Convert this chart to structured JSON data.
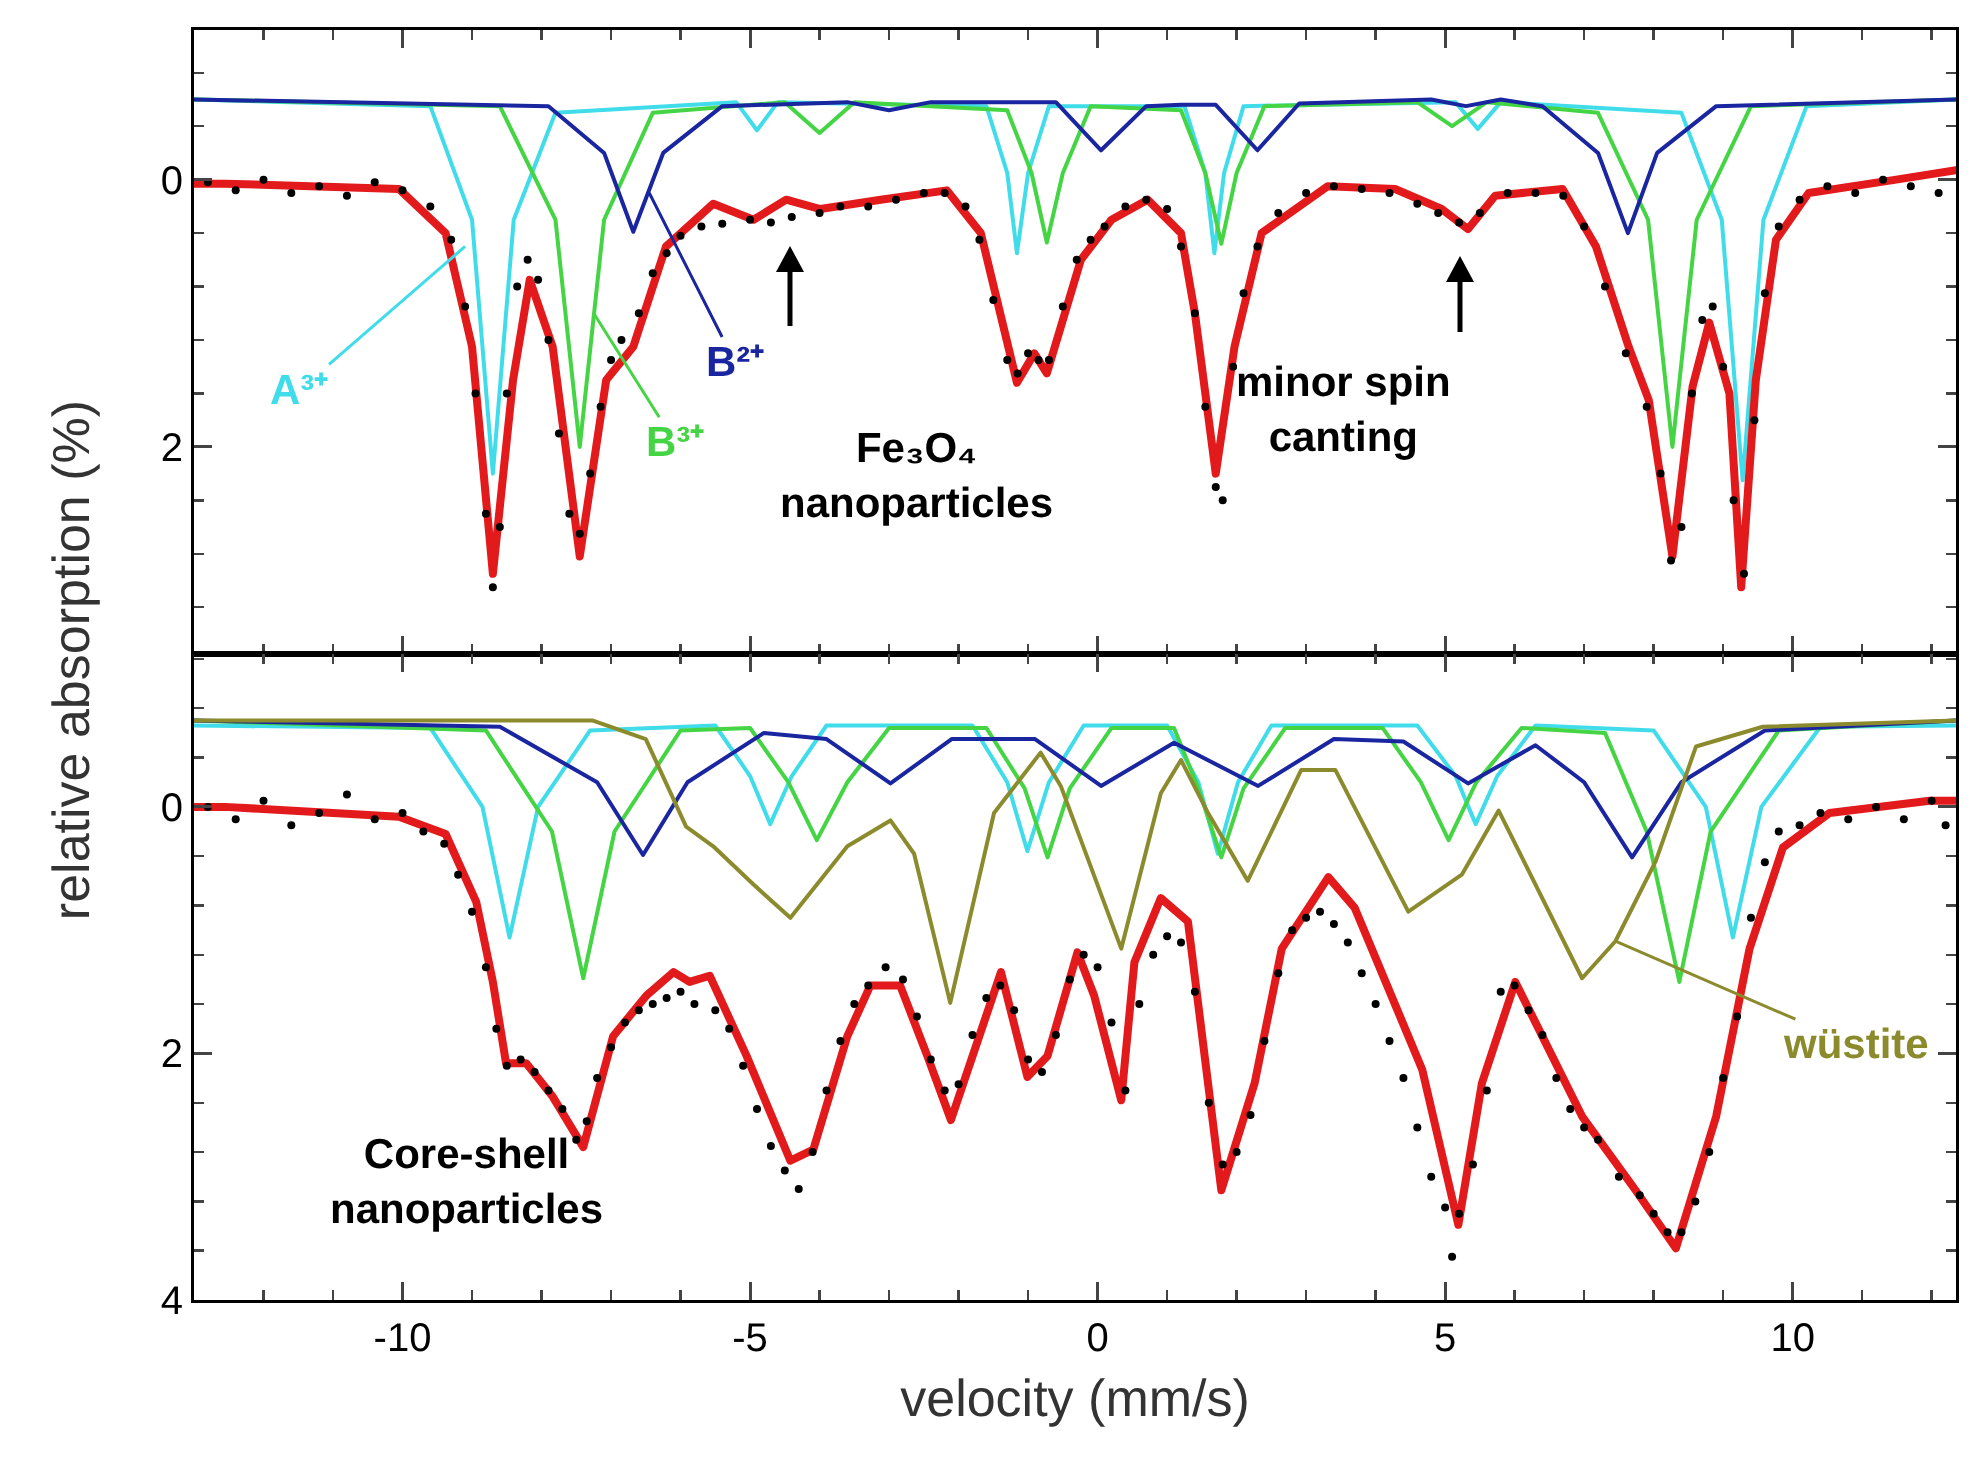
{
  "chart_data": [
    {
      "type": "line",
      "ylabel": "relative absorption (%)",
      "xlim": [
        -13.0,
        12.35
      ],
      "xticks": [
        -10,
        -5,
        0,
        5,
        10
      ],
      "ylim": [
        3.55,
        -1.12
      ],
      "yticks": [
        0,
        2
      ],
      "tick_labels": "y",
      "line_style": "solid",
      "annotations": [
        {
          "text": "A³⁺",
          "x": -9.1,
          "y": 0.5
        },
        {
          "text": "B³⁺",
          "x": -7.25,
          "y": 1.0
        },
        {
          "text": "B²⁺",
          "x": -6.45,
          "y": 0.1
        },
        "Fe₃O₄\nnanoparticles",
        "minor spin\ncanting"
      ],
      "series": [
        {
          "type": "line",
          "color": "#40dcea",
          "x": [
            -13.0,
            -9.6,
            -9.0,
            -8.7,
            -8.4,
            -7.8,
            -5.2,
            -4.9,
            -4.6,
            -1.6,
            -1.3,
            -1.16,
            -1.0,
            -0.7,
            1.25,
            1.55,
            1.68,
            1.82,
            2.1,
            5.15,
            5.47,
            5.8,
            8.4,
            8.98,
            9.28,
            9.58,
            10.2,
            12.35
          ],
          "values": [
            -0.6,
            -0.55,
            0.3,
            2.2,
            0.3,
            -0.5,
            -0.58,
            -0.37,
            -0.58,
            -0.55,
            -0.05,
            0.55,
            -0.05,
            -0.55,
            -0.55,
            -0.05,
            0.55,
            -0.05,
            -0.55,
            -0.58,
            -0.38,
            -0.58,
            -0.5,
            0.3,
            2.25,
            0.3,
            -0.55,
            -0.6
          ]
        },
        {
          "type": "line",
          "color": "#44d444",
          "x": [
            -13.0,
            -8.6,
            -7.8,
            -7.45,
            -7.1,
            -6.4,
            -4.5,
            -4.0,
            -3.5,
            -1.3,
            -0.95,
            -0.73,
            -0.5,
            -0.1,
            1.2,
            1.55,
            1.78,
            2.0,
            2.4,
            4.6,
            5.1,
            5.6,
            7.2,
            7.92,
            8.27,
            8.62,
            9.4,
            12.35
          ],
          "values": [
            -0.6,
            -0.55,
            0.3,
            2.0,
            0.3,
            -0.5,
            -0.58,
            -0.35,
            -0.58,
            -0.52,
            -0.05,
            0.47,
            -0.05,
            -0.55,
            -0.52,
            -0.05,
            0.48,
            -0.05,
            -0.55,
            -0.58,
            -0.4,
            -0.58,
            -0.5,
            0.3,
            2.0,
            0.3,
            -0.55,
            -0.6
          ]
        },
        {
          "type": "line",
          "color": "#1a25a0",
          "x": [
            -13.0,
            -7.9,
            -7.1,
            -6.68,
            -6.25,
            -5.4,
            -3.6,
            -3.0,
            -2.4,
            -0.6,
            0.05,
            0.7,
            1.2,
            1.7,
            2.3,
            2.9,
            4.8,
            5.3,
            5.8,
            6.4,
            7.2,
            7.63,
            8.05,
            8.9,
            12.35
          ],
          "values": [
            -0.6,
            -0.55,
            -0.2,
            0.39,
            -0.2,
            -0.55,
            -0.58,
            -0.52,
            -0.58,
            -0.58,
            -0.22,
            -0.55,
            -0.56,
            -0.56,
            -0.22,
            -0.57,
            -0.6,
            -0.55,
            -0.6,
            -0.55,
            -0.2,
            0.4,
            -0.2,
            -0.55,
            -0.6
          ]
        },
        {
          "type": "line",
          "color": "#e31a1c",
          "x": [
            -13.0,
            -12.55,
            -10.05,
            -9.38,
            -9.0,
            -8.7,
            -8.41,
            -8.17,
            -7.84,
            -7.45,
            -7.07,
            -6.68,
            -6.21,
            -5.53,
            -4.95,
            -4.48,
            -3.99,
            -3.12,
            -2.17,
            -1.68,
            -1.16,
            -0.91,
            -0.73,
            -0.24,
            0.2,
            0.72,
            1.2,
            1.4,
            1.7,
            1.97,
            2.36,
            3.31,
            4.28,
            4.95,
            5.33,
            5.72,
            6.69,
            7.17,
            7.64,
            7.93,
            8.27,
            8.56,
            8.8,
            9.09,
            9.26,
            9.47,
            9.76,
            10.23,
            11.49,
            12.35
          ],
          "values": [
            0.03,
            0.03,
            0.07,
            0.4,
            1.25,
            2.95,
            1.5,
            0.75,
            1.25,
            2.82,
            1.5,
            1.25,
            0.5,
            0.18,
            0.3,
            0.15,
            0.22,
            0.15,
            0.08,
            0.4,
            1.52,
            1.3,
            1.45,
            0.6,
            0.3,
            0.15,
            0.4,
            1.0,
            2.2,
            1.25,
            0.4,
            0.05,
            0.07,
            0.22,
            0.37,
            0.12,
            0.07,
            0.5,
            1.25,
            1.65,
            2.82,
            1.55,
            1.07,
            1.6,
            3.05,
            1.5,
            0.45,
            0.1,
            0.0,
            -0.07
          ]
        },
        {
          "type": "scatter",
          "marker": "circle",
          "color": "#000000",
          "x": [
            -12.8,
            -12.4,
            -12.0,
            -11.6,
            -11.2,
            -10.8,
            -10.4,
            -10.0,
            -9.6,
            -9.3,
            -9.1,
            -8.95,
            -8.8,
            -8.7,
            -8.6,
            -8.5,
            -8.35,
            -8.2,
            -8.05,
            -7.9,
            -7.75,
            -7.6,
            -7.45,
            -7.3,
            -7.15,
            -7.0,
            -6.85,
            -6.6,
            -6.4,
            -6.2,
            -6.0,
            -5.7,
            -5.4,
            -5.0,
            -4.7,
            -4.4,
            -4.0,
            -3.7,
            -3.3,
            -2.9,
            -2.5,
            -2.2,
            -1.9,
            -1.7,
            -1.5,
            -1.3,
            -1.15,
            -1.0,
            -0.85,
            -0.7,
            -0.5,
            -0.3,
            -0.1,
            0.1,
            0.4,
            0.7,
            1.0,
            1.2,
            1.4,
            1.55,
            1.7,
            1.8,
            1.95,
            2.1,
            2.3,
            2.6,
            3.0,
            3.4,
            3.8,
            4.2,
            4.6,
            4.9,
            5.2,
            5.5,
            5.9,
            6.3,
            6.7,
            7.0,
            7.3,
            7.6,
            7.9,
            8.1,
            8.25,
            8.4,
            8.55,
            8.7,
            8.85,
            9.0,
            9.15,
            9.3,
            9.45,
            9.6,
            9.8,
            10.1,
            10.5,
            10.9,
            11.3,
            11.7,
            12.1
          ],
          "values": [
            0.02,
            0.08,
            0.0,
            0.1,
            0.05,
            0.12,
            0.02,
            0.08,
            0.2,
            0.45,
            0.95,
            1.6,
            2.5,
            3.05,
            2.6,
            1.6,
            0.8,
            0.6,
            0.75,
            1.2,
            1.9,
            2.5,
            2.65,
            2.2,
            1.7,
            1.35,
            1.2,
            1.0,
            0.7,
            0.55,
            0.42,
            0.35,
            0.33,
            0.3,
            0.32,
            0.28,
            0.25,
            0.2,
            0.2,
            0.15,
            0.1,
            0.1,
            0.2,
            0.45,
            0.9,
            1.35,
            1.45,
            1.3,
            1.35,
            1.35,
            0.95,
            0.6,
            0.45,
            0.35,
            0.2,
            0.15,
            0.22,
            0.5,
            1.0,
            1.7,
            2.3,
            2.4,
            1.4,
            0.85,
            0.5,
            0.25,
            0.1,
            0.05,
            0.07,
            0.1,
            0.18,
            0.25,
            0.32,
            0.25,
            0.1,
            0.1,
            0.12,
            0.35,
            0.8,
            1.3,
            1.7,
            2.2,
            2.85,
            2.6,
            1.6,
            1.05,
            0.95,
            1.4,
            2.4,
            2.95,
            1.8,
            0.85,
            0.35,
            0.15,
            0.05,
            0.1,
            0.0,
            0.05,
            0.1
          ]
        }
      ]
    },
    {
      "type": "line",
      "xlabel": "velocity (mm/s)",
      "xlim": [
        -13.0,
        12.35
      ],
      "xticks": [
        -10,
        -5,
        0,
        5,
        10
      ],
      "ylim": [
        4.0,
        -1.24
      ],
      "yticks": [
        0,
        2,
        4
      ],
      "line_style": "solid",
      "annotations": [
        "Core-shell\nnanoparticles",
        {
          "text": "wüstite",
          "x": 7.45,
          "y": 1.09
        }
      ],
      "series": [
        {
          "type": "line",
          "color": "#40dcea",
          "x": [
            -13.0,
            -9.6,
            -8.85,
            -8.46,
            -8.05,
            -7.3,
            -5.5,
            -5.0,
            -4.71,
            -4.4,
            -3.9,
            -1.8,
            -1.3,
            -1.01,
            -0.7,
            -0.2,
            1.0,
            1.45,
            1.73,
            2.02,
            2.5,
            4.6,
            5.15,
            5.44,
            5.75,
            6.3,
            8.0,
            8.75,
            9.14,
            9.55,
            10.4,
            12.35
          ],
          "values": [
            -0.66,
            -0.64,
            0.0,
            1.06,
            0.0,
            -0.62,
            -0.66,
            -0.25,
            0.14,
            -0.25,
            -0.66,
            -0.66,
            -0.2,
            0.36,
            -0.2,
            -0.66,
            -0.66,
            -0.2,
            0.38,
            -0.2,
            -0.66,
            -0.66,
            -0.25,
            0.14,
            -0.25,
            -0.66,
            -0.62,
            0.0,
            1.06,
            0.0,
            -0.65,
            -0.66
          ]
        },
        {
          "type": "line",
          "color": "#44d444",
          "x": [
            -13.0,
            -8.8,
            -7.85,
            -7.4,
            -6.95,
            -6.0,
            -5.0,
            -4.45,
            -4.04,
            -3.6,
            -3.0,
            -1.6,
            -1.05,
            -0.72,
            -0.4,
            0.2,
            1.1,
            1.45,
            1.78,
            2.1,
            2.7,
            4.1,
            4.65,
            5.05,
            5.45,
            6.1,
            7.3,
            7.9,
            8.37,
            8.82,
            9.8,
            12.35
          ],
          "values": [
            -0.7,
            -0.62,
            0.2,
            1.39,
            0.2,
            -0.62,
            -0.64,
            -0.2,
            0.27,
            -0.2,
            -0.64,
            -0.64,
            -0.15,
            0.41,
            -0.15,
            -0.64,
            -0.64,
            -0.15,
            0.41,
            -0.15,
            -0.64,
            -0.64,
            -0.2,
            0.27,
            -0.2,
            -0.64,
            -0.6,
            0.2,
            1.42,
            0.2,
            -0.62,
            -0.7
          ]
        },
        {
          "type": "line",
          "color": "#1a25a0",
          "x": [
            -13.0,
            -8.6,
            -7.2,
            -6.54,
            -5.9,
            -4.8,
            -3.9,
            -2.98,
            -2.1,
            -0.9,
            0.05,
            1.1,
            2.31,
            3.4,
            4.4,
            5.33,
            6.3,
            7.0,
            7.69,
            8.4,
            9.6,
            12.35
          ],
          "values": [
            -0.7,
            -0.65,
            -0.2,
            0.39,
            -0.2,
            -0.6,
            -0.55,
            -0.19,
            -0.55,
            -0.55,
            -0.17,
            -0.52,
            -0.17,
            -0.55,
            -0.53,
            -0.19,
            -0.5,
            -0.2,
            0.41,
            -0.2,
            -0.62,
            -0.7
          ]
        },
        {
          "type": "line",
          "color": "#8b8b2e",
          "x": [
            -13.0,
            -7.26,
            -6.5,
            -5.92,
            -5.53,
            -4.95,
            -4.42,
            -3.6,
            -2.98,
            -2.64,
            -2.12,
            -1.49,
            -0.82,
            -0.53,
            0.34,
            0.91,
            1.2,
            1.59,
            2.16,
            2.93,
            3.42,
            4.47,
            5.24,
            5.77,
            6.97,
            7.45,
            8.03,
            8.61,
            9.57,
            12.35
          ],
          "values": [
            -0.7,
            -0.7,
            -0.55,
            0.16,
            0.32,
            0.63,
            0.9,
            0.32,
            0.11,
            0.38,
            1.59,
            0.05,
            -0.44,
            -0.17,
            1.15,
            -0.11,
            -0.38,
            0.05,
            0.6,
            -0.3,
            -0.3,
            0.85,
            0.55,
            0.03,
            1.39,
            1.09,
            0.44,
            -0.49,
            -0.65,
            -0.7
          ]
        },
        {
          "type": "line",
          "color": "#e31a1c",
          "x": [
            -13.0,
            -12.55,
            -10.05,
            -9.38,
            -8.94,
            -8.7,
            -8.51,
            -8.22,
            -7.84,
            -7.4,
            -6.97,
            -6.49,
            -6.1,
            -5.87,
            -5.58,
            -5.05,
            -4.42,
            -4.09,
            -3.6,
            -3.27,
            -2.84,
            -2.45,
            -2.11,
            -1.39,
            -1.01,
            -0.72,
            -0.29,
            -0.05,
            0.34,
            0.53,
            0.91,
            1.3,
            1.78,
            2.26,
            2.65,
            3.32,
            3.7,
            4.67,
            5.19,
            5.53,
            6.01,
            6.97,
            7.74,
            8.32,
            8.9,
            9.38,
            9.86,
            10.53,
            11.97,
            12.35
          ],
          "values": [
            0.0,
            0.0,
            0.08,
            0.22,
            0.77,
            1.42,
            2.08,
            2.08,
            2.35,
            2.76,
            1.86,
            1.53,
            1.34,
            1.42,
            1.37,
            2.02,
            2.87,
            2.78,
            1.86,
            1.45,
            1.45,
            2.02,
            2.54,
            1.34,
            2.19,
            2.02,
            1.18,
            1.53,
            2.38,
            1.26,
            0.74,
            0.93,
            3.11,
            2.24,
            1.15,
            0.57,
            0.82,
            2.13,
            3.39,
            2.24,
            1.42,
            2.51,
            3.11,
            3.58,
            2.51,
            1.15,
            0.33,
            0.05,
            -0.05,
            -0.05
          ]
        },
        {
          "type": "scatter",
          "marker": "circle",
          "color": "#000000",
          "x": [
            -12.8,
            -12.4,
            -12.0,
            -11.6,
            -11.2,
            -10.8,
            -10.4,
            -10.0,
            -9.7,
            -9.4,
            -9.2,
            -9.0,
            -8.8,
            -8.65,
            -8.5,
            -8.3,
            -8.1,
            -7.9,
            -7.7,
            -7.5,
            -7.35,
            -7.2,
            -7.0,
            -6.8,
            -6.6,
            -6.4,
            -6.2,
            -6.0,
            -5.8,
            -5.5,
            -5.3,
            -5.1,
            -4.9,
            -4.7,
            -4.5,
            -4.3,
            -4.1,
            -3.9,
            -3.7,
            -3.5,
            -3.3,
            -3.05,
            -2.8,
            -2.6,
            -2.4,
            -2.2,
            -2.0,
            -1.8,
            -1.6,
            -1.4,
            -1.2,
            -1.0,
            -0.8,
            -0.6,
            -0.4,
            -0.2,
            0.0,
            0.2,
            0.4,
            0.6,
            0.8,
            1.0,
            1.2,
            1.4,
            1.6,
            1.8,
            2.0,
            2.2,
            2.4,
            2.6,
            2.8,
            3.0,
            3.2,
            3.4,
            3.6,
            3.8,
            4.0,
            4.2,
            4.4,
            4.6,
            4.8,
            5.0,
            5.1,
            5.2,
            5.4,
            5.6,
            5.8,
            6.0,
            6.2,
            6.4,
            6.6,
            6.8,
            7.0,
            7.2,
            7.5,
            7.8,
            8.0,
            8.2,
            8.4,
            8.6,
            8.8,
            9.0,
            9.2,
            9.4,
            9.6,
            9.8,
            10.1,
            10.4,
            10.8,
            11.2,
            11.6,
            12.0,
            12.2
          ],
          "values": [
            0.0,
            0.1,
            -0.05,
            0.15,
            0.05,
            -0.1,
            0.1,
            0.05,
            0.2,
            0.3,
            0.55,
            0.85,
            1.3,
            1.8,
            2.1,
            2.05,
            2.15,
            2.3,
            2.45,
            2.7,
            2.55,
            2.2,
            1.95,
            1.75,
            1.65,
            1.6,
            1.55,
            1.5,
            1.6,
            1.65,
            1.8,
            2.1,
            2.45,
            2.75,
            2.95,
            3.1,
            2.8,
            2.3,
            1.9,
            1.6,
            1.45,
            1.3,
            1.4,
            1.7,
            2.05,
            2.3,
            2.25,
            1.85,
            1.55,
            1.45,
            1.65,
            2.05,
            2.15,
            1.85,
            1.4,
            1.2,
            1.3,
            1.75,
            2.3,
            1.6,
            1.2,
            1.05,
            1.1,
            1.5,
            2.4,
            2.9,
            2.8,
            2.5,
            1.9,
            1.35,
            1.0,
            0.9,
            0.85,
            0.95,
            1.1,
            1.35,
            1.6,
            1.9,
            2.2,
            2.6,
            3.0,
            3.25,
            3.65,
            3.3,
            2.9,
            2.3,
            1.5,
            1.45,
            1.65,
            1.85,
            2.2,
            2.45,
            2.6,
            2.7,
            3.0,
            3.15,
            3.3,
            3.45,
            3.45,
            3.2,
            2.8,
            2.2,
            1.7,
            0.9,
            0.45,
            0.2,
            0.15,
            0.05,
            0.1,
            0.0,
            0.1,
            -0.05,
            0.15
          ]
        }
      ]
    }
  ]
}
